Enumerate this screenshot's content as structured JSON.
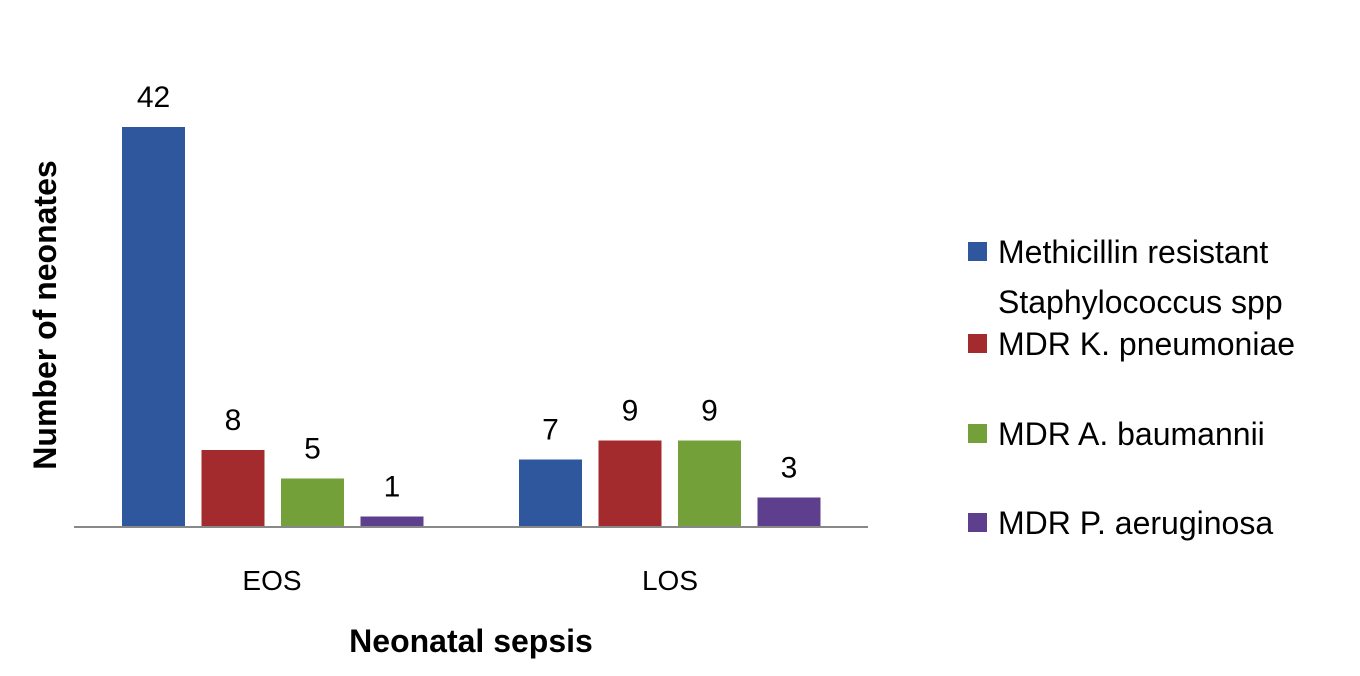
{
  "chart_data": {
    "type": "bar",
    "title": "",
    "xlabel": "Neonatal sepsis",
    "ylabel": "Number of neonates",
    "categories": [
      "EOS",
      "LOS"
    ],
    "series": [
      {
        "name": "Methicillin resistant Staphylococcus spp",
        "legend_lines": [
          "Methicillin resistant",
          "Staphylococcus spp"
        ],
        "color": "#2E579E",
        "values": [
          42,
          7
        ]
      },
      {
        "name": "MDR K. pneumoniae",
        "legend_lines": [
          "MDR K. pneumoniae"
        ],
        "color": "#A32B2E",
        "values": [
          8,
          9
        ]
      },
      {
        "name": "MDR A. baumannii",
        "legend_lines": [
          "MDR A. baumannii"
        ],
        "color": "#74A03A",
        "values": [
          5,
          9
        ]
      },
      {
        "name": "MDR P. aeruginosa",
        "legend_lines": [
          "MDR P. aeruginosa"
        ],
        "color": "#5D3F8D",
        "values": [
          1,
          3
        ]
      }
    ],
    "ylim": [
      0,
      42
    ],
    "grid": false,
    "legend_position": "right",
    "data_labels": true
  }
}
